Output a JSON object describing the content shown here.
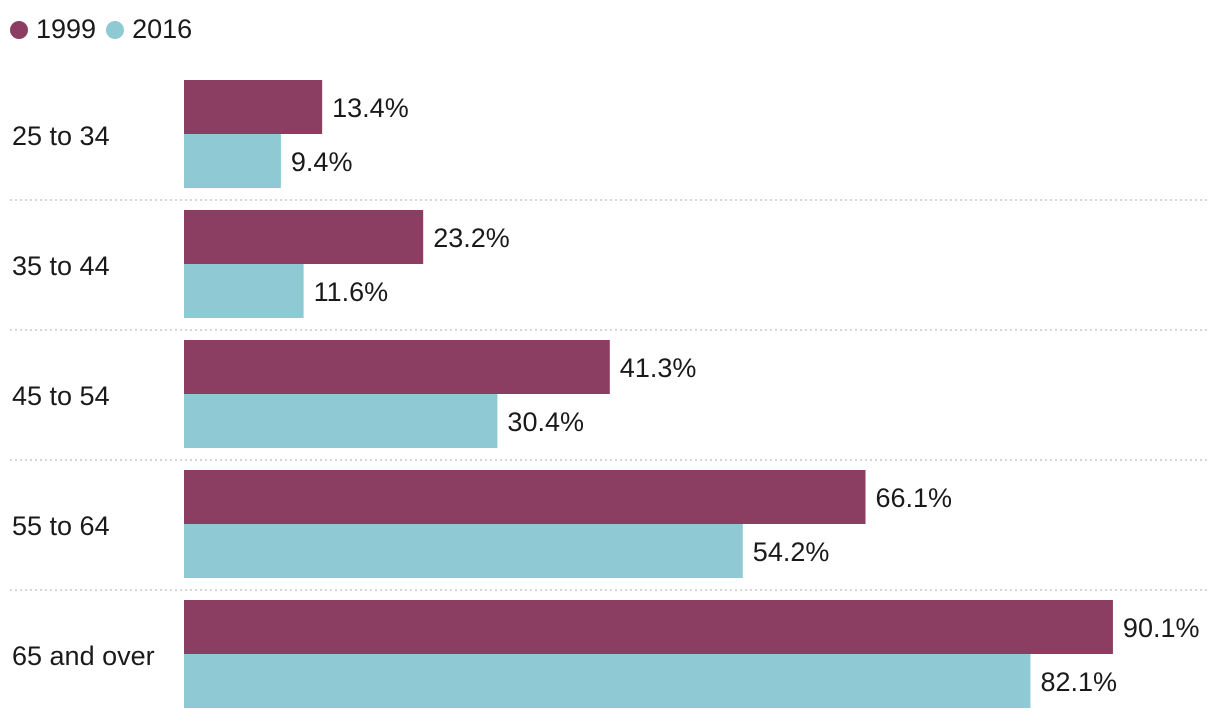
{
  "chart_data": {
    "type": "bar",
    "orientation": "horizontal",
    "categories": [
      "25 to 34",
      "35 to 44",
      "45 to 54",
      "55 to 64",
      "65 and over"
    ],
    "series": [
      {
        "name": "1999",
        "color": "#8b3e62",
        "values": [
          13.4,
          23.2,
          41.3,
          66.1,
          90.1
        ]
      },
      {
        "name": "2016",
        "color": "#8fc9d3",
        "values": [
          9.4,
          11.6,
          30.4,
          54.2,
          82.1
        ]
      }
    ],
    "data_labels": [
      [
        "13.4%",
        "23.2%",
        "41.3%",
        "66.1%",
        "90.1%"
      ],
      [
        "9.4%",
        "11.6%",
        "30.4%",
        "54.2%",
        "82.1%"
      ]
    ],
    "xlim": [
      0,
      100
    ],
    "legend_position": "top-left",
    "grid": false
  }
}
